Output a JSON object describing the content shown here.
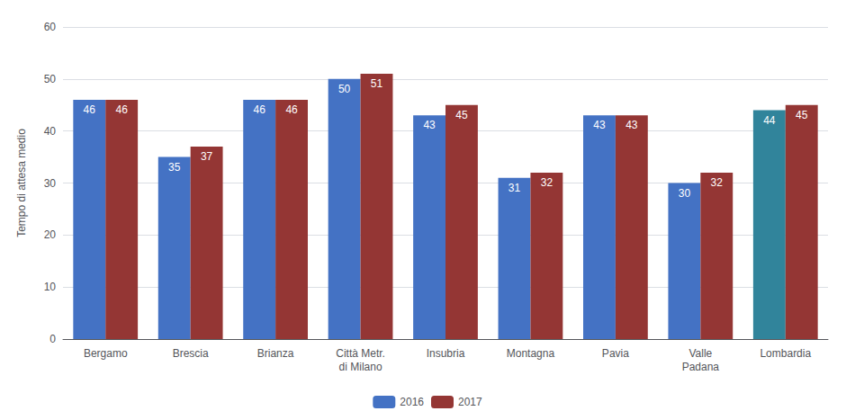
{
  "chart_data": {
    "type": "bar",
    "categories": [
      "Bergamo",
      "Brescia",
      "Brianza",
      "Città Metr.\ndi Milano",
      "Insubria",
      "Montagna",
      "Pavia",
      "Valle\nPadana",
      "Lombardia"
    ],
    "series": [
      {
        "name": "2016",
        "colors": [
          "#4472C4",
          "#4472C4",
          "#4472C4",
          "#4472C4",
          "#4472C4",
          "#4472C4",
          "#4472C4",
          "#4472C4",
          "#31849B"
        ],
        "values": [
          46,
          35,
          46,
          50,
          43,
          31,
          43,
          30,
          44
        ]
      },
      {
        "name": "2017",
        "color": "#943634",
        "values": [
          46,
          37,
          46,
          51,
          45,
          32,
          43,
          32,
          45
        ]
      }
    ],
    "ylabel": "Tempo di attesa medio",
    "ylim": [
      0,
      60
    ],
    "yticks": [
      0,
      10,
      20,
      30,
      40,
      50,
      60
    ],
    "grid": true,
    "legend": "bottom",
    "data_labels": true
  }
}
